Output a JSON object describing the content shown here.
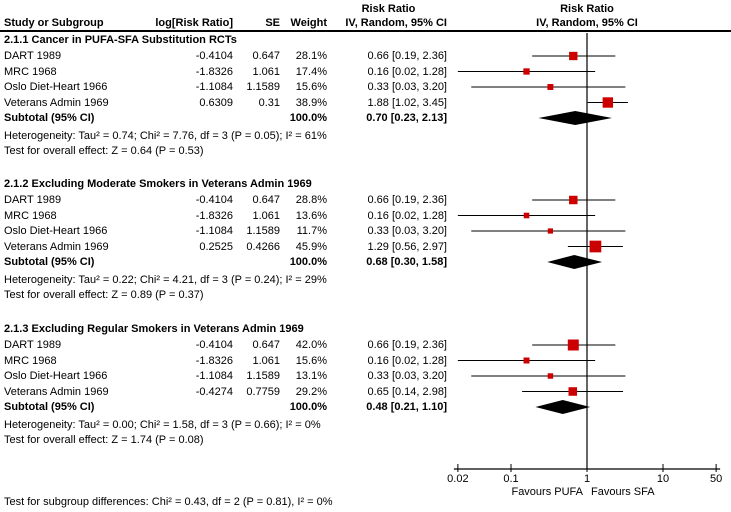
{
  "chart_data": {
    "type": "forest",
    "x_scale": "log",
    "x_ticks": [
      "0.02",
      "0.1",
      "1",
      "10",
      "50"
    ],
    "x_tick_values": [
      0.02,
      0.1,
      1,
      10,
      50
    ],
    "x_range": [
      0.02,
      50
    ],
    "null_line": 1,
    "favours_left": "Favours PUFA",
    "favours_right": "Favours SFA",
    "effect_measure": "Risk Ratio",
    "model": "IV, Random, 95% CI",
    "columns": {
      "study": "Study or Subgroup",
      "log_rr": "log[Risk Ratio]",
      "se": "SE",
      "weight": "Weight",
      "ci": "IV, Random, 95% CI"
    },
    "sections": [
      {
        "title": "2.1.1 Cancer in PUFA-SFA Substitution RCTs",
        "studies": [
          {
            "name": "DART 1989",
            "log_rr": "-0.4104",
            "se": "0.647",
            "weight": "28.1%",
            "weight_pct": 28.1,
            "ci_text": "0.66 [0.19, 2.36]",
            "rr": 0.66,
            "lo": 0.19,
            "hi": 2.36
          },
          {
            "name": "MRC 1968",
            "log_rr": "-1.8326",
            "se": "1.061",
            "weight": "17.4%",
            "weight_pct": 17.4,
            "ci_text": "0.16 [0.02, 1.28]",
            "rr": 0.16,
            "lo": 0.02,
            "hi": 1.28
          },
          {
            "name": "Oslo Diet-Heart 1966",
            "log_rr": "-1.1084",
            "se": "1.1589",
            "weight": "15.6%",
            "weight_pct": 15.6,
            "ci_text": "0.33 [0.03, 3.20]",
            "rr": 0.33,
            "lo": 0.03,
            "hi": 3.2
          },
          {
            "name": "Veterans Admin 1969",
            "log_rr": "0.6309",
            "se": "0.31",
            "weight": "38.9%",
            "weight_pct": 38.9,
            "ci_text": "1.88 [1.02, 3.45]",
            "rr": 1.88,
            "lo": 1.02,
            "hi": 3.45
          }
        ],
        "subtotal": {
          "label": "Subtotal (95% CI)",
          "weight": "100.0%",
          "ci_text": "0.70 [0.23, 2.13]",
          "rr": 0.7,
          "lo": 0.23,
          "hi": 2.13
        },
        "heterogeneity": "Heterogeneity: Tau² = 0.74; Chi² = 7.76, df = 3 (P = 0.05); I² = 61%",
        "overall_effect": "Test for overall effect: Z = 0.64 (P = 0.53)"
      },
      {
        "title": "2.1.2 Excluding Moderate Smokers in Veterans Admin 1969",
        "studies": [
          {
            "name": "DART 1989",
            "log_rr": "-0.4104",
            "se": "0.647",
            "weight": "28.8%",
            "weight_pct": 28.8,
            "ci_text": "0.66 [0.19, 2.36]",
            "rr": 0.66,
            "lo": 0.19,
            "hi": 2.36
          },
          {
            "name": "MRC 1968",
            "log_rr": "-1.8326",
            "se": "1.061",
            "weight": "13.6%",
            "weight_pct": 13.6,
            "ci_text": "0.16 [0.02, 1.28]",
            "rr": 0.16,
            "lo": 0.02,
            "hi": 1.28
          },
          {
            "name": "Oslo Diet-Heart 1966",
            "log_rr": "-1.1084",
            "se": "1.1589",
            "weight": "11.7%",
            "weight_pct": 11.7,
            "ci_text": "0.33 [0.03, 3.20]",
            "rr": 0.33,
            "lo": 0.03,
            "hi": 3.2
          },
          {
            "name": "Veterans Admin 1969",
            "log_rr": "0.2525",
            "se": "0.4266",
            "weight": "45.9%",
            "weight_pct": 45.9,
            "ci_text": "1.29 [0.56, 2.97]",
            "rr": 1.29,
            "lo": 0.56,
            "hi": 2.97
          }
        ],
        "subtotal": {
          "label": "Subtotal (95% CI)",
          "weight": "100.0%",
          "ci_text": "0.68 [0.30, 1.58]",
          "rr": 0.68,
          "lo": 0.3,
          "hi": 1.58
        },
        "heterogeneity": "Heterogeneity: Tau² = 0.22; Chi² = 4.21, df = 3 (P = 0.24); I² = 29%",
        "overall_effect": "Test for overall effect: Z = 0.89 (P = 0.37)"
      },
      {
        "title": "2.1.3 Excluding Regular Smokers in Veterans Admin 1969",
        "studies": [
          {
            "name": "DART 1989",
            "log_rr": "-0.4104",
            "se": "0.647",
            "weight": "42.0%",
            "weight_pct": 42.0,
            "ci_text": "0.66 [0.19, 2.36]",
            "rr": 0.66,
            "lo": 0.19,
            "hi": 2.36
          },
          {
            "name": "MRC 1968",
            "log_rr": "-1.8326",
            "se": "1.061",
            "weight": "15.6%",
            "weight_pct": 15.6,
            "ci_text": "0.16 [0.02, 1.28]",
            "rr": 0.16,
            "lo": 0.02,
            "hi": 1.28
          },
          {
            "name": "Oslo Diet-Heart 1966",
            "log_rr": "-1.1084",
            "se": "1.1589",
            "weight": "13.1%",
            "weight_pct": 13.1,
            "ci_text": "0.33 [0.03, 3.20]",
            "rr": 0.33,
            "lo": 0.03,
            "hi": 3.2
          },
          {
            "name": "Veterans Admin 1969",
            "log_rr": "-0.4274",
            "se": "0.7759",
            "weight": "29.2%",
            "weight_pct": 29.2,
            "ci_text": "0.65 [0.14, 2.98]",
            "rr": 0.65,
            "lo": 0.14,
            "hi": 2.98
          }
        ],
        "subtotal": {
          "label": "Subtotal (95% CI)",
          "weight": "100.0%",
          "ci_text": "0.48 [0.21, 1.10]",
          "rr": 0.48,
          "lo": 0.21,
          "hi": 1.1
        },
        "heterogeneity": "Heterogeneity: Tau² = 0.00; Chi² = 1.58, df = 3 (P = 0.66); I² = 0%",
        "overall_effect": "Test for overall effect: Z = 1.74 (P = 0.08)"
      }
    ],
    "footer": "Test for subgroup differences: Chi² = 0.43, df = 2 (P = 0.81), I² = 0%"
  },
  "colors": {
    "marker": "#CC0000",
    "diamond": "#000000",
    "line": "#000000",
    "text": "#000000"
  }
}
